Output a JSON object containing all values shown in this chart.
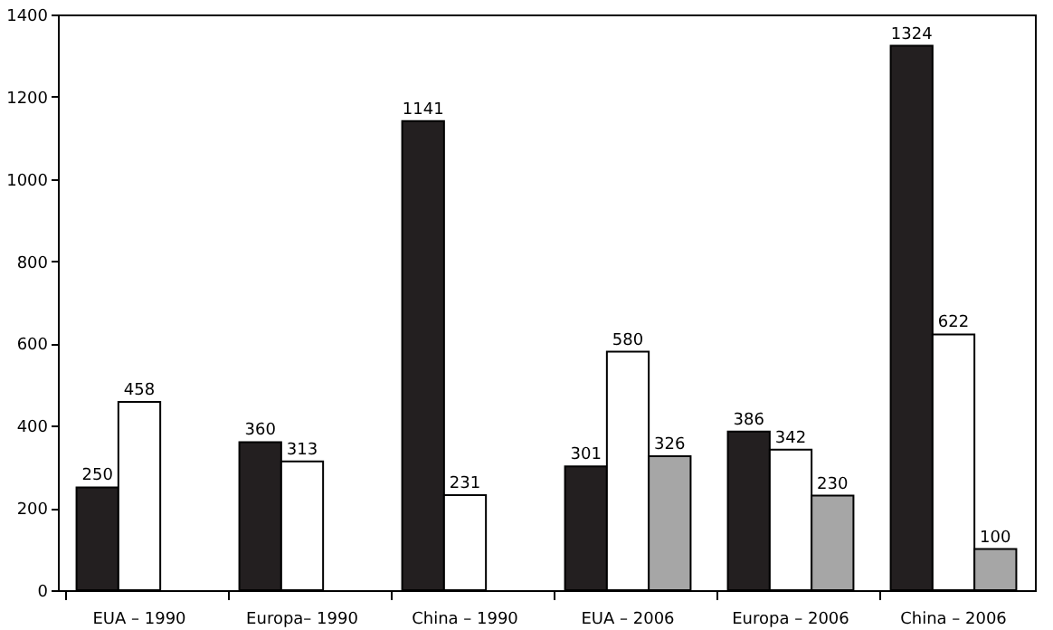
{
  "chart_data": {
    "type": "bar",
    "categories": [
      "EUA – 1990",
      "Europa– 1990",
      "China – 1990",
      "EUA – 2006",
      "Europa – 2006",
      "China – 2006"
    ],
    "series": [
      {
        "color": "#231f20",
        "values": [
          250,
          360,
          1141,
          301,
          386,
          1324
        ]
      },
      {
        "color": "#ffffff",
        "values": [
          458,
          313,
          231,
          580,
          342,
          622
        ]
      },
      {
        "color": "#a6a6a6",
        "values": [
          null,
          null,
          null,
          326,
          230,
          100
        ]
      }
    ],
    "ylim": [
      0,
      1400
    ],
    "yticks": [
      0,
      200,
      400,
      600,
      800,
      1000,
      1200,
      1400
    ],
    "grid": false,
    "data_labels": true
  }
}
